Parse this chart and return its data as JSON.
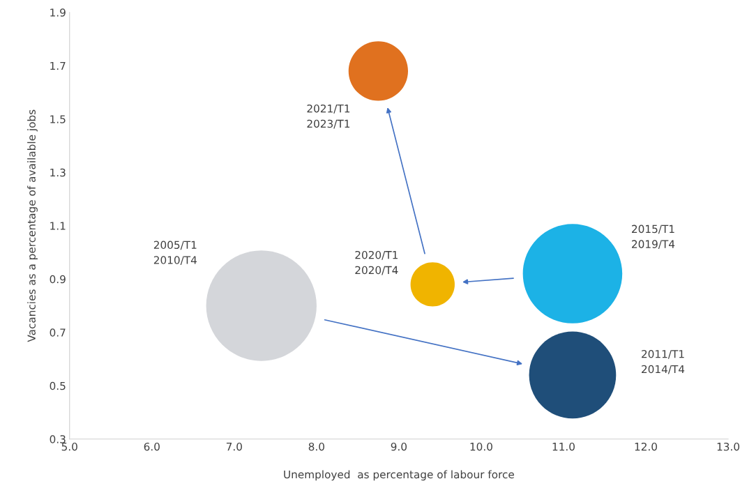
{
  "chart_data": {
    "type": "bubble",
    "xlabel": "Unemployed  as percentage of labour force",
    "ylabel": "Vacancies as a percentage of available jobs",
    "series": [
      {
        "name": "2005/T1\n2010/T4",
        "color": "#d4d6da",
        "x": [
          7.33
        ],
        "values": [
          0.8
        ],
        "sizes": [
          1
        ]
      },
      {
        "name": "2011/T1\n2014/T4",
        "color": "#1f4e79",
        "x": [
          11.11
        ],
        "values": [
          0.54
        ],
        "sizes": [
          0.62
        ]
      },
      {
        "name": "2015/T1\n2019/T4",
        "color": "#1cb2e6",
        "x": [
          11.11
        ],
        "values": [
          0.92
        ],
        "sizes": [
          0.81
        ]
      },
      {
        "name": "2020/T1\n2020/T4",
        "color": "#f0b400",
        "x": [
          9.41
        ],
        "values": [
          0.88
        ],
        "sizes": [
          0.16
        ]
      },
      {
        "name": "2021/T1\n2023/T1",
        "color": "#e0711f",
        "x": [
          8.75
        ],
        "values": [
          1.68
        ],
        "sizes": [
          0.29
        ]
      }
    ],
    "xlim": [
      5,
      13
    ],
    "xticks": [
      {
        "value": 5,
        "label": "5.0"
      },
      {
        "value": 6,
        "label": "6.0"
      },
      {
        "value": 7,
        "label": "7.0"
      },
      {
        "value": 8,
        "label": "8.0"
      },
      {
        "value": 9,
        "label": "9.0"
      },
      {
        "value": 10,
        "label": "10.0"
      },
      {
        "value": 11,
        "label": "11.0"
      },
      {
        "value": 12,
        "label": "12.0"
      },
      {
        "value": 13,
        "label": "13.0"
      }
    ],
    "ylim": [
      0.3,
      1.9
    ],
    "yticks": [
      0.3,
      0.5,
      0.7,
      0.9,
      1.1,
      1.3,
      1.5,
      1.7,
      1.9
    ],
    "grid": false,
    "legend": false
  }
}
